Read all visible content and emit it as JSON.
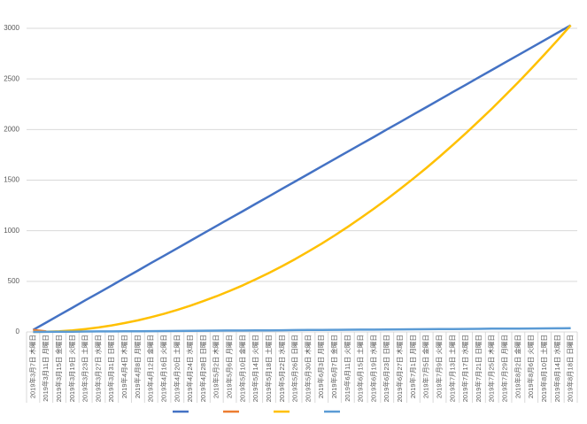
{
  "chart_data": {
    "type": "line",
    "categories": [
      "2019年3月7日 木曜日",
      "2019年3月11日 月曜日",
      "2019年3月15日 金曜日",
      "2019年3月19日 火曜日",
      "2019年3月23日 土曜日",
      "2019年3月27日 水曜日",
      "2019年3月31日 日曜日",
      "2019年4月4日 木曜日",
      "2019年4月8日 月曜日",
      "2019年4月12日 金曜日",
      "2019年4月16日 火曜日",
      "2019年4月20日 土曜日",
      "2019年4月24日 水曜日",
      "2019年4月28日 日曜日",
      "2019年5月2日 木曜日",
      "2019年5月6日 月曜日",
      "2019年5月10日 金曜日",
      "2019年5月14日 火曜日",
      "2019年5月18日 土曜日",
      "2019年5月22日 水曜日",
      "2019年5月26日 日曜日",
      "2019年5月30日 木曜日",
      "2019年6月3日 月曜日",
      "2019年6月7日 金曜日",
      "2019年6月11日 火曜日",
      "2019年6月15日 土曜日",
      "2019年6月19日 水曜日",
      "2019年6月23日 日曜日",
      "2019年6月27日 木曜日",
      "2019年7月1日 月曜日",
      "2019年7月5日 金曜日",
      "2019年7月9日 火曜日",
      "2019年7月13日 土曜日",
      "2019年7月17日 水曜日",
      "2019年7月21日 日曜日",
      "2019年7月25日 木曜日",
      "2019年7月29日 月曜日",
      "2019年8月2日 金曜日",
      "2019年8月6日 火曜日",
      "2019年8月10日 土曜日",
      "2019年8月14日 水曜日",
      "2019年8月18日 日曜日"
    ],
    "series": [
      {
        "color": "#4472c4",
        "values": [
          20,
          93,
          167,
          240,
          314,
          387,
          460,
          534,
          607,
          681,
          754,
          827,
          901,
          974,
          1048,
          1121,
          1194,
          1268,
          1341,
          1415,
          1488,
          1561,
          1635,
          1708,
          1782,
          1855,
          1928,
          2002,
          2075,
          2149,
          2222,
          2295,
          2369,
          2442,
          2516,
          2589,
          2662,
          2736,
          2809,
          2883,
          2956,
          3030
        ]
      },
      {
        "color": "#ed7d31",
        "values": [
          20,
          5,
          null,
          null,
          null,
          null,
          null,
          null,
          null,
          null,
          null,
          null,
          null,
          null,
          null,
          null,
          null,
          null,
          null,
          null,
          null,
          null,
          null,
          null,
          null,
          null,
          null,
          null,
          null,
          null,
          null,
          null,
          null,
          null,
          null,
          null,
          null,
          null,
          null,
          null,
          null,
          null
        ]
      },
      {
        "color": "#ffc000",
        "values": [
          0,
          2,
          7,
          16,
          29,
          45,
          65,
          88,
          115,
          146,
          180,
          218,
          260,
          305,
          353,
          406,
          461,
          521,
          584,
          651,
          721,
          795,
          872,
          953,
          1038,
          1127,
          1219,
          1315,
          1413,
          1516,
          1622,
          1732,
          1846,
          1963,
          2084,
          2208,
          2336,
          2467,
          2603,
          2742,
          2884,
          3030
        ]
      },
      {
        "color": "#5b9bd5",
        "values": [
          0,
          1,
          2,
          3,
          4,
          5,
          5,
          6,
          7,
          8,
          9,
          10,
          11,
          12,
          13,
          14,
          14,
          15,
          16,
          17,
          18,
          19,
          20,
          21,
          22,
          23,
          23,
          24,
          25,
          26,
          27,
          28,
          29,
          30,
          31,
          32,
          32,
          33,
          34,
          35,
          36,
          37
        ]
      }
    ],
    "ylim": [
      0,
      3000
    ],
    "yticks": [
      0,
      500,
      1000,
      1500,
      2000,
      2500,
      3000
    ],
    "grid": true
  }
}
